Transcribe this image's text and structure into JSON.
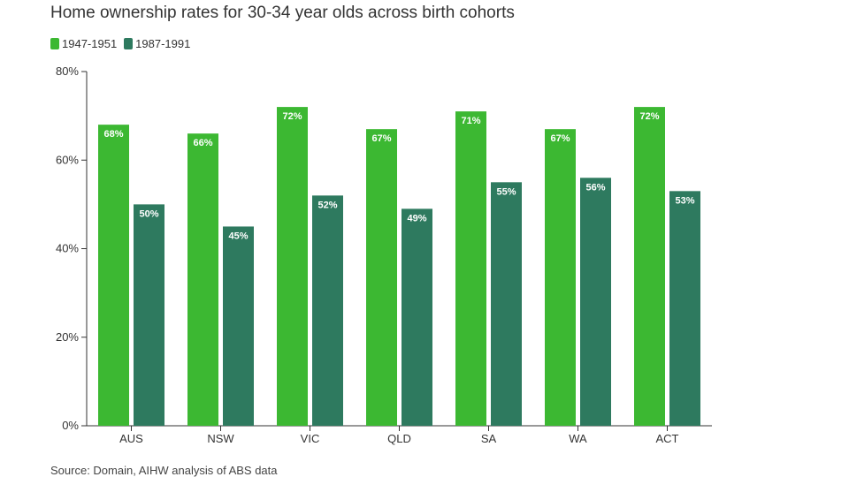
{
  "title": "Home ownership rates for 30-34 year olds across birth cohorts",
  "source": "Source: Domain, AIHW analysis of ABS data",
  "chart_data": {
    "type": "bar",
    "title": "Home ownership rates for 30-34 year olds across birth cohorts",
    "xlabel": "",
    "ylabel": "",
    "categories": [
      "AUS",
      "NSW",
      "VIC",
      "QLD",
      "SA",
      "WA",
      "ACT"
    ],
    "series": [
      {
        "name": "1947-1951",
        "color": "#3cb832",
        "values": [
          68,
          66,
          72,
          67,
          71,
          67,
          72
        ]
      },
      {
        "name": "1987-1991",
        "color": "#2e7a5f",
        "values": [
          50,
          45,
          52,
          49,
          55,
          56,
          53
        ]
      }
    ],
    "ylim": [
      0,
      80
    ],
    "yticks": [
      "0%",
      "20%",
      "40%",
      "60%",
      "80%"
    ],
    "ytick_values": [
      0,
      20,
      40,
      60,
      80
    ],
    "value_labels": [
      [
        "68%",
        "66%",
        "72%",
        "67%",
        "71%",
        "67%",
        "72%"
      ],
      [
        "50%",
        "45%",
        "52%",
        "49%",
        "55%",
        "56%",
        "53%"
      ]
    ],
    "legend_position": "top-left",
    "grid": false
  }
}
